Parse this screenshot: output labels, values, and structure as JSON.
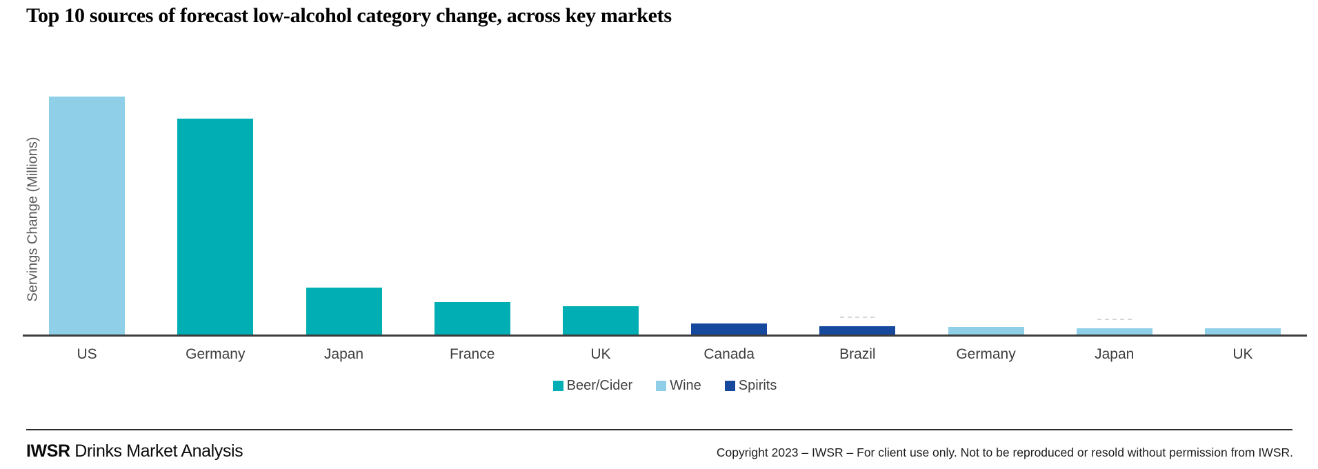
{
  "page": {
    "title": "Top 10 sources of forecast low-alcohol category change, across key markets"
  },
  "chart_data": {
    "type": "bar",
    "title": "Top 10 sources of forecast low-alcohol category change, across key markets",
    "xlabel": "",
    "ylabel": "Servings Change (Millions)",
    "value_axis": "no ticks or gridlines shown; values are estimates read from relative bar heights, in millions of servings",
    "grid": false,
    "categories": [
      "US",
      "Germany",
      "Japan",
      "France",
      "UK",
      "Canada",
      "Brazil",
      "Germany",
      "Japan",
      "UK"
    ],
    "legend": {
      "position": "bottom-center",
      "entries": [
        {
          "label": "Beer/Cider",
          "color": "#00AEB3"
        },
        {
          "label": "Wine",
          "color": "#8FD0E8"
        },
        {
          "label": "Spirits",
          "color": "#16489E"
        }
      ]
    },
    "points": [
      {
        "category": "US",
        "series": "Wine",
        "value": 350
      },
      {
        "category": "Germany",
        "series": "Beer/Cider",
        "value": 318
      },
      {
        "category": "Japan",
        "series": "Beer/Cider",
        "value": 70
      },
      {
        "category": "France",
        "series": "Beer/Cider",
        "value": 49
      },
      {
        "category": "UK",
        "series": "Beer/Cider",
        "value": 42
      },
      {
        "category": "Canada",
        "series": "Spirits",
        "value": 17
      },
      {
        "category": "Brazil",
        "series": "Spirits",
        "value": 13,
        "faint_mark": true
      },
      {
        "category": "Germany",
        "series": "Wine",
        "value": 12
      },
      {
        "category": "Japan",
        "series": "Wine",
        "value": 10,
        "faint_mark": true
      },
      {
        "category": "UK",
        "series": "Wine",
        "value": 10
      }
    ]
  },
  "footer": {
    "brand_bold": "IWSR",
    "brand_rest": "Drinks Market Analysis",
    "copyright": "Copyright 2023 – IWSR – For client use only. Not to be reproduced or resold without permission from IWSR."
  }
}
